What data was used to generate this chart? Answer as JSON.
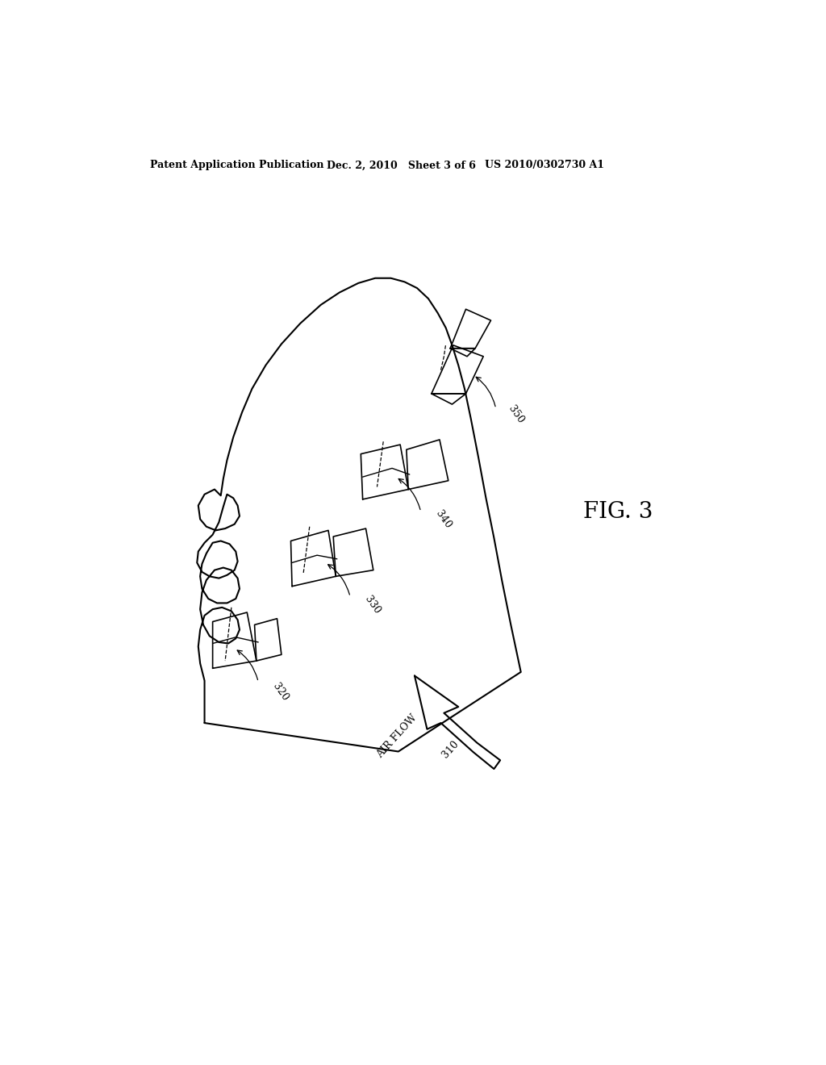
{
  "header_left": "Patent Application Publication",
  "header_mid": "Dec. 2, 2010   Sheet 3 of 6",
  "header_right": "US 2010/0302730 A1",
  "fig_label": "FIG. 3",
  "bg_color": "#ffffff",
  "line_color": "#000000",
  "lw": 1.3
}
